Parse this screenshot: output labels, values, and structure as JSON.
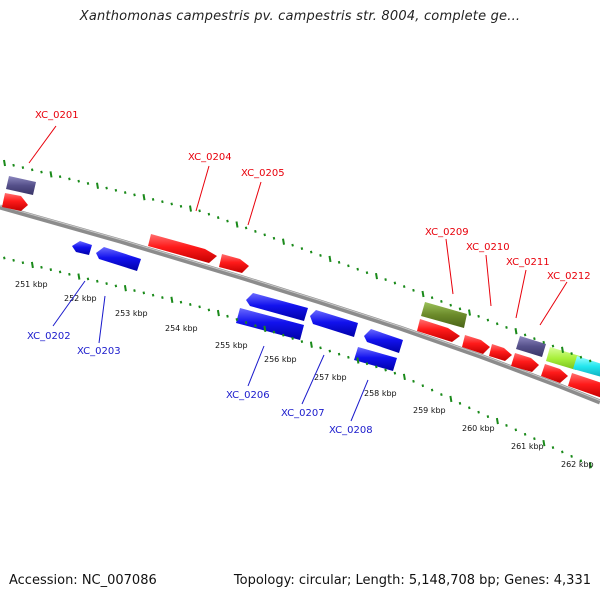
{
  "title": "Xanthomonas campestris pv. campestris str. 8004, complete ge...",
  "footer": {
    "accession": "Accession: NC_007086",
    "summary": "Topology: circular; Length: 5,148,708 bp; Genes: 4,331"
  },
  "colors": {
    "forward_label": "#e8000b",
    "reverse_label": "#1a1acc",
    "backbone": "#8c8c8c",
    "tick": "#1a8a1a",
    "cds_red": "#ff1a1a",
    "cds_blue": "#1212ee",
    "gene_slate": "#55508a",
    "gene_olive": "#6b8a2a",
    "gene_lime": "#a8f03a",
    "gene_cyan": "#22e6ee"
  },
  "kbp_ticks": [
    "251 kbp",
    "252 kbp",
    "253 kbp",
    "254 kbp",
    "255 kbp",
    "256 kbp",
    "257 kbp",
    "258 kbp",
    "259 kbp",
    "260 kbp",
    "261 kbp",
    "262 kbp"
  ],
  "forward_labels": [
    "XC_0201",
    "XC_0204",
    "XC_0205",
    "XC_0209",
    "XC_0210",
    "XC_0211",
    "XC_0212"
  ],
  "reverse_labels": [
    "XC_0202",
    "XC_0203",
    "XC_0206",
    "XC_0207",
    "XC_0208"
  ]
}
